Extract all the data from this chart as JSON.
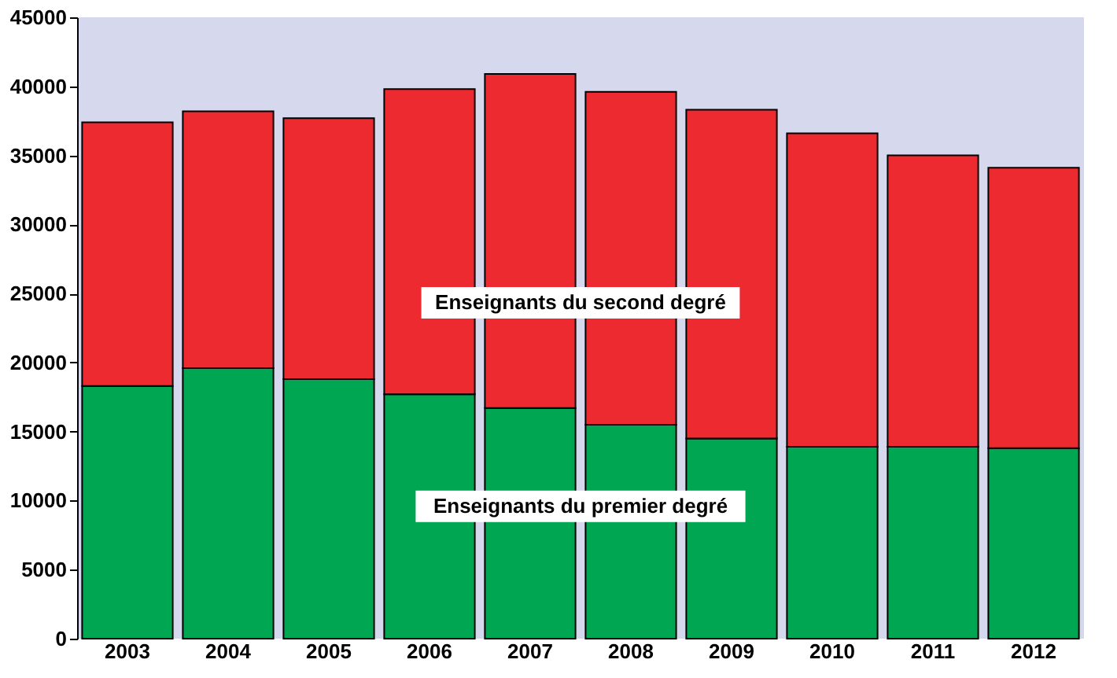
{
  "chart_data": {
    "type": "bar",
    "stacked": true,
    "categories": [
      "2003",
      "2004",
      "2005",
      "2006",
      "2007",
      "2008",
      "2009",
      "2010",
      "2011",
      "2012"
    ],
    "series": [
      {
        "name": "Enseignants du premier degré",
        "color": "#00a651",
        "values": [
          18300,
          19600,
          18800,
          17700,
          16700,
          15500,
          14500,
          13900,
          13900,
          13800
        ]
      },
      {
        "name": "Enseignants du second degré",
        "color": "#ed2a2f",
        "values": [
          19100,
          18600,
          18900,
          22100,
          24200,
          24100,
          23800,
          22700,
          21100,
          20300
        ]
      }
    ],
    "ylim": [
      0,
      45000
    ],
    "yticks": [
      0,
      5000,
      10000,
      15000,
      20000,
      25000,
      30000,
      35000,
      40000,
      45000
    ],
    "grid": false,
    "legend": false
  }
}
